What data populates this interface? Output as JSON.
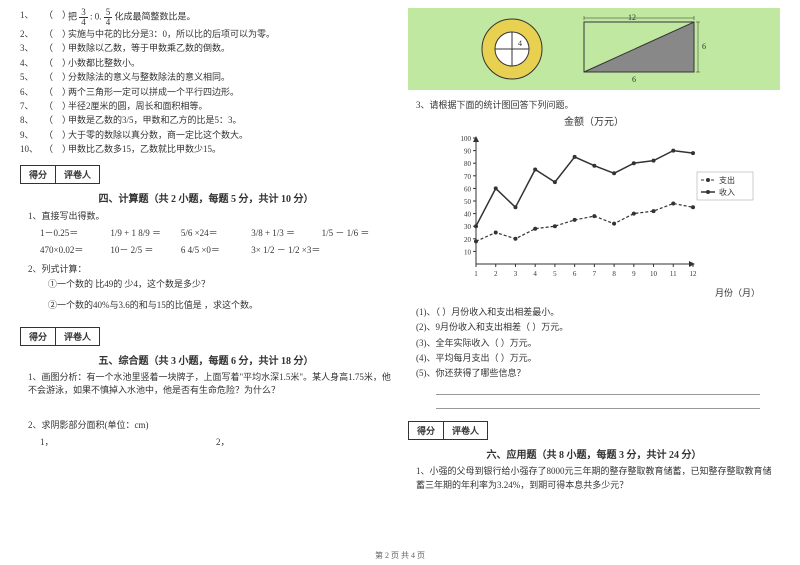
{
  "tf_items": [
    {
      "num": "1、",
      "text_pre": "把 ",
      "frac1": {
        "n": "3",
        "d": "4"
      },
      "mid": " : 0.",
      "frac2": {
        "n": "5",
        "d": "4"
      },
      "text_post": "化成最简整数比是。"
    },
    {
      "num": "2、",
      "text": "实施与中花的比分是3：0，所以比的后项可以为零。"
    },
    {
      "num": "3、",
      "text": "甲数除以乙数，等于甲数乘乙数的倒数。"
    },
    {
      "num": "4、",
      "text": "小数都比整数小。"
    },
    {
      "num": "5、",
      "text": "分数除法的意义与整数除法的意义相同。"
    },
    {
      "num": "6、",
      "text": "两个三角形一定可以拼成一个平行四边形。"
    },
    {
      "num": "7、",
      "text": "半径2厘米的圆，周长和面积相等。"
    },
    {
      "num": "8、",
      "text": "甲数是乙数的3/5，甲数和乙方的比是5：3。"
    },
    {
      "num": "9、",
      "text": "大于零的数除以真分数，商一定比这个数大。"
    },
    {
      "num": "10、",
      "text": "甲数比乙数多15，乙数就比甲数少15。"
    }
  ],
  "score_labels": {
    "score": "得分",
    "reviewer": "评卷人"
  },
  "section4": {
    "title": "四、计算题（共 2 小题，每题 5 分，共计 10 分）",
    "q1": "1、直接写出得数。",
    "q2": "2、列式计算：",
    "q2a": "①一个数的 比49的 少4，这个数是多少？",
    "q2b": "②一个数的40%与3.6的和与15的比值是 ，求这个数。"
  },
  "calc_rows": [
    [
      "1－0.25＝",
      "1/9 + 1 8/9 ＝",
      "5/6 ×24＝",
      "3/8 + 1/3 ＝",
      "1/5 － 1/6 ＝"
    ],
    [
      "470×0.02＝",
      "10－ 2/5 ＝",
      "6 4/5 ×0＝",
      "3× 1/2 － 1/2 ×3＝",
      ""
    ]
  ],
  "section5": {
    "title": "五、综合题（共 3 小题，每题 6 分，共计 18 分）",
    "q1": "1、画图分析：有一个水池里竖着一块牌子，上面写着\"平均水深1.5米\"。某人身高1.75米，他不会游泳，如果不慎掉入水池中，他是否有生命危险？为什么？",
    "q2": "2、求阴影部分面积(单位：cm)",
    "q2a": "1，",
    "q2b": "2，"
  },
  "right": {
    "geom": {
      "circle_r": "4",
      "rect_w": "12",
      "rect_h": "6"
    },
    "q3": "3、请根据下面的统计图回答下列问题。",
    "chart_title": "金额（万元）",
    "y_label": "",
    "x_label": "月份（月）",
    "y_ticks": [
      "10",
      "20",
      "30",
      "40",
      "50",
      "60",
      "70",
      "80",
      "90",
      "100"
    ],
    "x_ticks": [
      "1",
      "2",
      "3",
      "4",
      "5",
      "6",
      "7",
      "8",
      "9",
      "10",
      "11",
      "12"
    ],
    "legend": {
      "a": "支出",
      "b": "收入"
    },
    "series_income": [
      30,
      60,
      45,
      75,
      65,
      85,
      78,
      72,
      80,
      82,
      90,
      88
    ],
    "series_expense": [
      18,
      25,
      20,
      28,
      30,
      35,
      38,
      32,
      40,
      42,
      48,
      45
    ],
    "colors": {
      "income": "#333333",
      "expense": "#333333",
      "grid": "#cccccc",
      "bg": "#ffffff"
    },
    "sub_qs": [
      "(1)、（   ）月份收入和支出相差最小。",
      "(2)、9月份收入和支出相差（   ）万元。",
      "(3)、全年实际收入（   ）万元。",
      "(4)、平均每月支出（   ）万元。",
      "(5)、你还获得了哪些信息？"
    ]
  },
  "section6": {
    "title": "六、应用题（共 8 小题，每题 3 分，共计 24 分）",
    "q1": "1、小强的父母到银行给小强存了8000元三年期的整存整取教育储蓄，已知整存整取教育储蓄三年期的年利率为3.24%，到期可得本息共多少元？"
  },
  "footer": "第 2 页 共 4 页"
}
